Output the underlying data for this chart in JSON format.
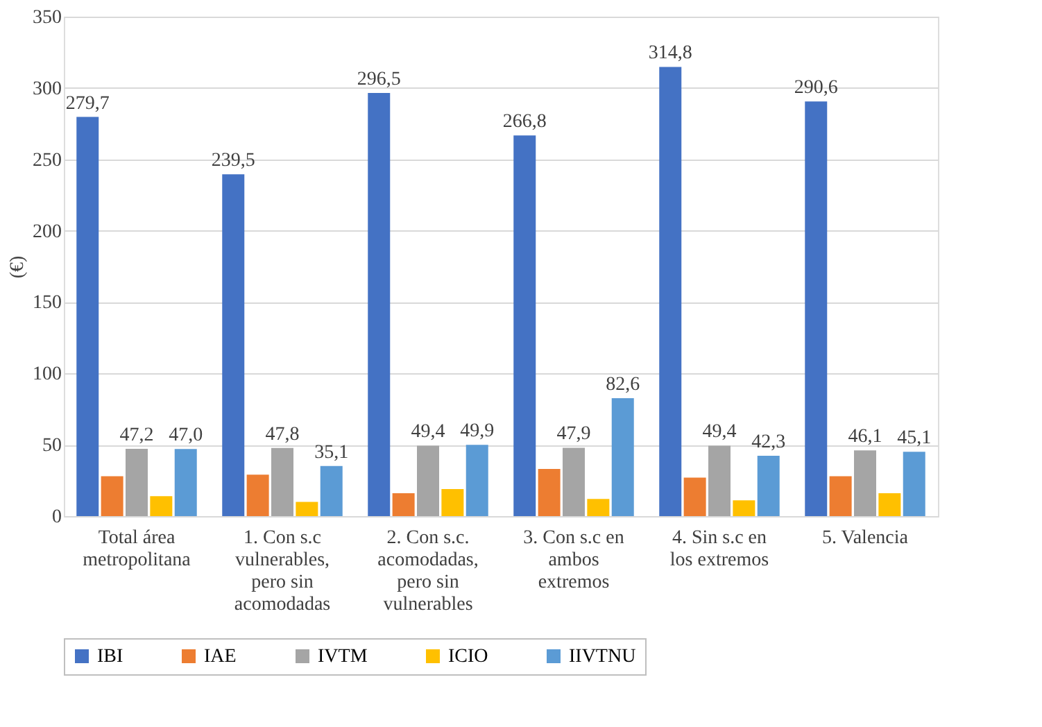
{
  "chart_data": {
    "type": "bar",
    "ylabel": "(€)",
    "categories": [
      "Total área metropolitana",
      "1. Con s.c vulnerables, pero sin acomodadas",
      "2. Con s.c. acomodadas, pero sin vulnerables",
      "3. Con s.c en ambos extremos",
      "4. Sin s.c en los extremos",
      "5. Valencia"
    ],
    "series": [
      {
        "name": "IBI",
        "color": "#4472c4",
        "values": [
          279.7,
          239.5,
          296.5,
          266.8,
          314.8,
          290.6
        ],
        "value_labels": [
          "279,7",
          "239,5",
          "296,5",
          "266,8",
          "314,8",
          "290,6"
        ]
      },
      {
        "name": "IAE",
        "color": "#ed7d31",
        "values": [
          28,
          29,
          16,
          33,
          27,
          28
        ]
      },
      {
        "name": "IVTM",
        "color": "#a5a5a5",
        "values": [
          47.2,
          47.8,
          49.4,
          47.9,
          49.4,
          46.1
        ],
        "value_labels": [
          "47,2",
          "47,8",
          "49,4",
          "47,9",
          "49,4",
          "46,1"
        ]
      },
      {
        "name": "ICIO",
        "color": "#ffc000",
        "values": [
          14,
          10,
          19,
          12,
          11,
          16
        ]
      },
      {
        "name": "IIVTNU",
        "color": "#5b9bd5",
        "values": [
          47.0,
          35.1,
          49.9,
          82.6,
          42.3,
          45.1
        ],
        "value_labels": [
          "47,0",
          "35,1",
          "49,9",
          "82,6",
          "42,3",
          "45,1"
        ]
      }
    ],
    "ylim": [
      0,
      350
    ],
    "yticks": [
      0,
      50,
      100,
      150,
      200,
      250,
      300,
      350
    ],
    "grid": "y",
    "legend": "bottom"
  }
}
